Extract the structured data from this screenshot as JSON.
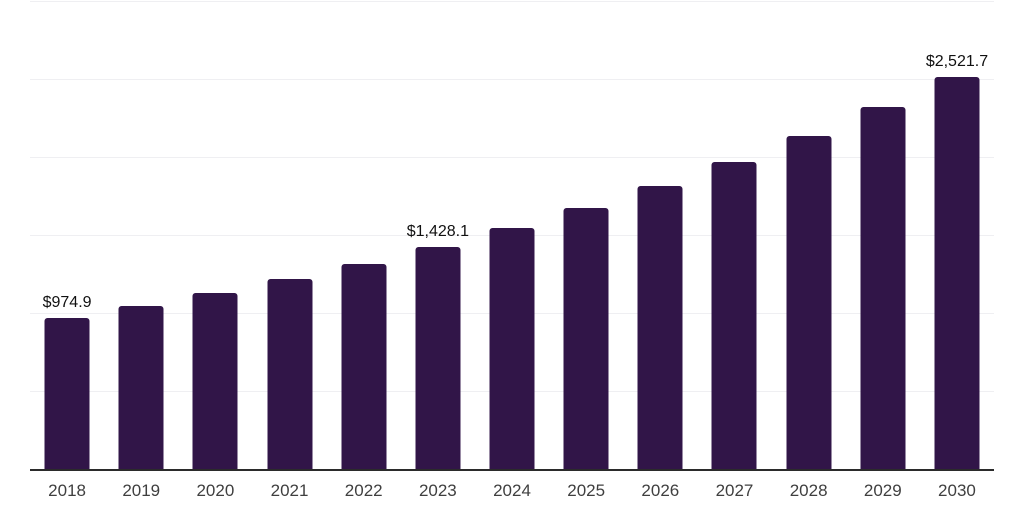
{
  "chart_data": {
    "type": "bar",
    "title": "",
    "xlabel": "",
    "ylabel": "",
    "categories": [
      "2018",
      "2019",
      "2020",
      "2021",
      "2022",
      "2023",
      "2024",
      "2025",
      "2026",
      "2027",
      "2028",
      "2029",
      "2030"
    ],
    "values": [
      974.9,
      1052.4,
      1136.0,
      1226.3,
      1323.7,
      1428.1,
      1549.0,
      1680.2,
      1822.4,
      1976.7,
      2144.0,
      2325.5,
      2521.7
    ],
    "bar_labels": [
      "$974.9",
      null,
      null,
      null,
      null,
      "$1,428.1",
      null,
      null,
      null,
      null,
      null,
      null,
      "$2,521.7"
    ],
    "ylim": [
      0,
      3000
    ],
    "gridline_step": 500,
    "grid": true,
    "legend": false,
    "legend_position": "none",
    "bar_color": "#311548",
    "gridline_color": "#efeff2",
    "axis_line_color": "#2b2b2b",
    "value_label_color": "#111111",
    "tick_label_color": "#3f3f3f",
    "background_color": "#ffffff"
  }
}
